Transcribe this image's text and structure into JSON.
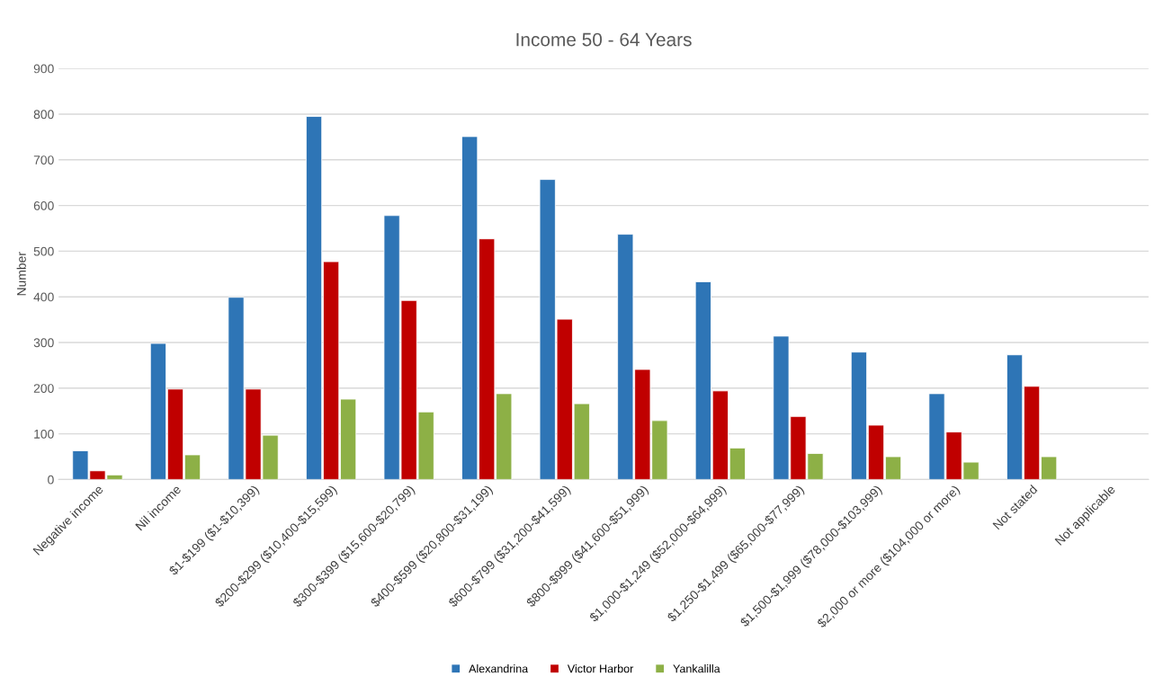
{
  "chart_data": {
    "type": "bar",
    "title": "Income 50 - 64 Years",
    "ylabel": "Number",
    "categories": [
      "Negative income",
      "Nil income",
      "$1-$199 ($1-$10,399)",
      "$200-$299 ($10,400-$15,599)",
      "$300-$399 ($15,600-$20,799)",
      "$400-$599 ($20,800-$31,199)",
      "$600-$799 ($31,200-$41,599)",
      "$800-$999 ($41,600-$51,999)",
      "$1,000-$1,249 ($52,000-$64,999)",
      "$1,250-$1,499 ($65,000-$77,999)",
      "$1,500-$1,999 ($78,000-$103,999)",
      "$2,000 or more ($104,000 or more)",
      "Not stated",
      "Not applicable"
    ],
    "series": [
      {
        "name": "Alexandrina",
        "color": "#2e75b6",
        "values": [
          63,
          298,
          399,
          795,
          578,
          751,
          657,
          537,
          433,
          314,
          279,
          188,
          273,
          null
        ]
      },
      {
        "name": "Victor Harbor",
        "color": "#c00000",
        "values": [
          19,
          198,
          198,
          477,
          392,
          527,
          351,
          241,
          194,
          138,
          119,
          104,
          204,
          null
        ]
      },
      {
        "name": "Yankalilla",
        "color": "#8db046",
        "values": [
          10,
          54,
          97,
          176,
          148,
          188,
          166,
          129,
          69,
          57,
          50,
          38,
          50,
          null
        ]
      }
    ],
    "ylim": [
      0,
      900
    ],
    "yticks": [
      0,
      100,
      200,
      300,
      400,
      500,
      600,
      700,
      800,
      900
    ],
    "grid": "y",
    "legend": "bottom"
  }
}
